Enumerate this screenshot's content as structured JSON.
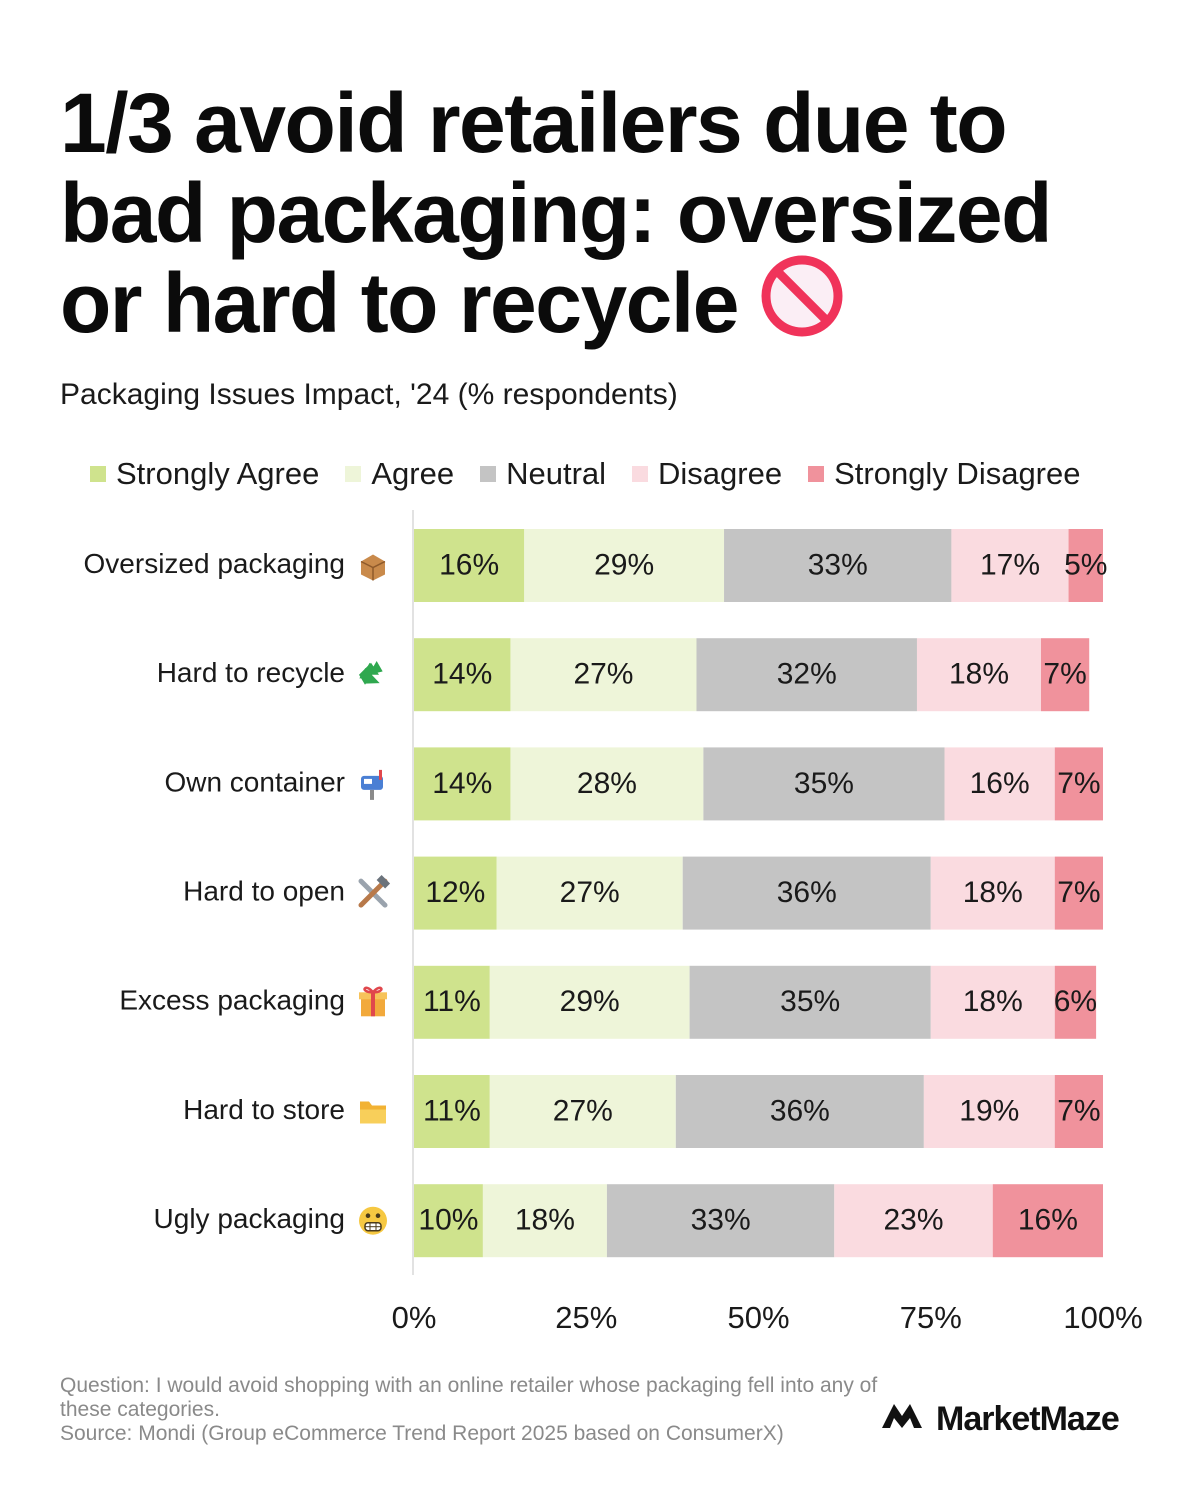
{
  "title": {
    "lines": [
      "1/3 avoid retailers due to",
      "bad packaging: oversized",
      "or hard to recycle"
    ],
    "icon": "prohibited-icon"
  },
  "subtitle": "Packaging Issues Impact, '24 (% respondents)",
  "legend": [
    {
      "label": "Strongly Agree",
      "color": "#cfe38d"
    },
    {
      "label": "Agree",
      "color": "#eef5d9"
    },
    {
      "label": "Neutral",
      "color": "#c4c4c4"
    },
    {
      "label": "Disagree",
      "color": "#fadbe0"
    },
    {
      "label": "Strongly Disagree",
      "color": "#f0929c"
    }
  ],
  "chart_data": {
    "type": "bar",
    "orientation": "horizontal",
    "stacked": true,
    "categories": [
      "Oversized packaging",
      "Hard to recycle",
      "Own container",
      "Hard to open",
      "Excess packaging",
      "Hard to store",
      "Ugly packaging"
    ],
    "category_icons": [
      "package-icon",
      "recycle-icon",
      "mailbox-icon",
      "tools-icon",
      "gift-icon",
      "folder-icon",
      "grimace-face-icon"
    ],
    "series": [
      {
        "name": "Strongly Agree",
        "color": "#cfe38d",
        "values": [
          16,
          14,
          14,
          12,
          11,
          11,
          10
        ]
      },
      {
        "name": "Agree",
        "color": "#eef5d9",
        "values": [
          29,
          27,
          28,
          27,
          29,
          27,
          18
        ]
      },
      {
        "name": "Neutral",
        "color": "#c4c4c4",
        "values": [
          33,
          32,
          35,
          36,
          35,
          36,
          33
        ]
      },
      {
        "name": "Disagree",
        "color": "#fadbe0",
        "values": [
          17,
          18,
          16,
          18,
          18,
          19,
          23
        ]
      },
      {
        "name": "Strongly Disagree",
        "color": "#f0929c",
        "values": [
          5,
          7,
          7,
          7,
          6,
          7,
          16
        ]
      }
    ],
    "xlim": [
      0,
      100
    ],
    "xticks": [
      "0%",
      "25%",
      "50%",
      "75%",
      "100%"
    ],
    "xtick_values": [
      0,
      25,
      50,
      75,
      100
    ],
    "value_suffix": "%",
    "legend_position": "top"
  },
  "footnote": {
    "question": "Question: I would avoid shopping with an online retailer whose packaging fell into any of these categories.",
    "source": "Source: Mondi (Group eCommerce Trend Report 2025 based on ConsumerX)"
  },
  "brand": {
    "name": "MarketMaze",
    "icon": "marketmaze-logo-icon"
  }
}
